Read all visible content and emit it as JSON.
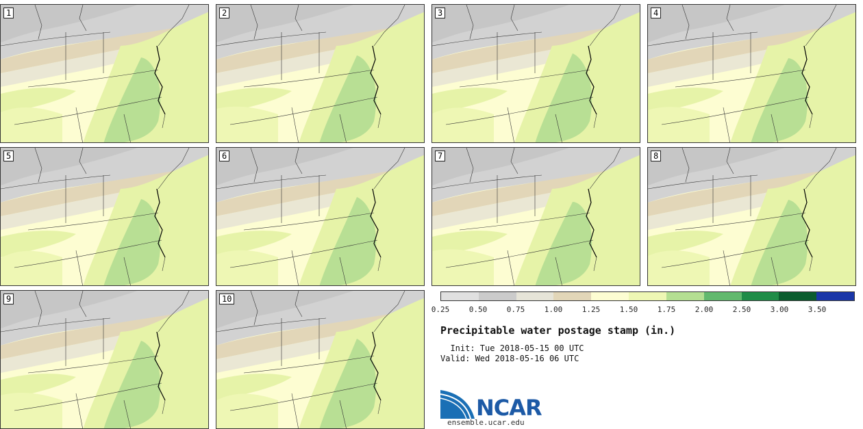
{
  "panels": [
    "1",
    "2",
    "3",
    "4",
    "5",
    "6",
    "7",
    "8",
    "9",
    "10"
  ],
  "legend": {
    "colors": [
      "#e0e0e0",
      "#cbcbcb",
      "#e6e4d8",
      "#e2d6b8",
      "#fdfdd2",
      "#eef7b4",
      "#b4df92",
      "#62b96e",
      "#1f8c48",
      "#0b5c2e",
      "#1a36a8"
    ],
    "ticks": [
      "0.25",
      "0.50",
      "0.75",
      "1.00",
      "1.25",
      "1.50",
      "1.75",
      "2.00",
      "2.50",
      "3.00",
      "3.50"
    ]
  },
  "title": "Precipitable water postage stamp (in.)",
  "init_line": "  Init: Tue 2018-05-15 00 UTC",
  "valid_line": "Valid: Wed 2018-05-16 06 UTC",
  "logo_text": "NCAR",
  "site": "ensemble.ucar.edu"
}
